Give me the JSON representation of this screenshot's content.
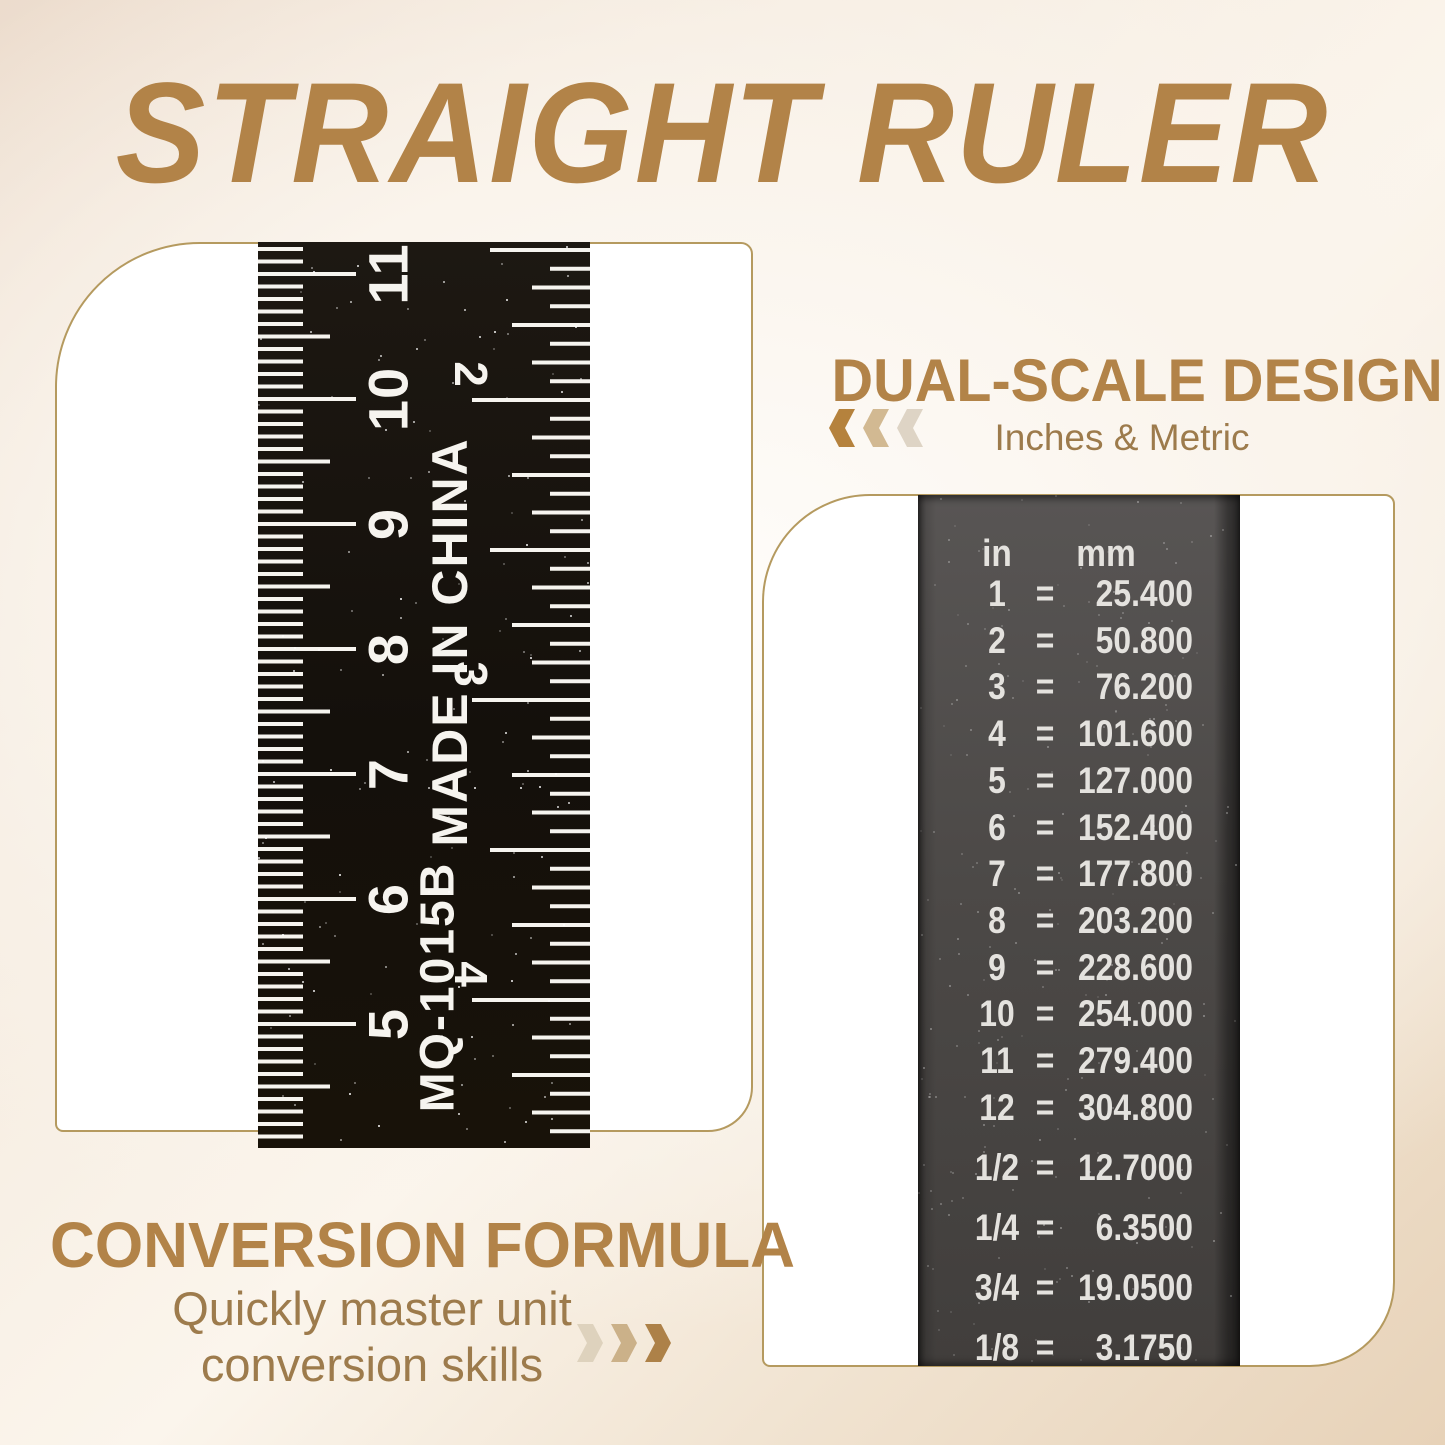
{
  "title": "STRAIGHT RULER",
  "sections": {
    "dual_scale": {
      "heading": "DUAL-SCALE DESIGN",
      "subtitle": "Inches & Metric",
      "chevron_icon": "triple-chevron-left"
    },
    "conversion_formula": {
      "heading": "CONVERSION FORMULA",
      "subtitle_line1": "Quickly master unit",
      "subtitle_line2": "conversion skills",
      "chevron_icon": "triple-chevron-right"
    }
  },
  "ruler_photo": {
    "model_number": "MQ-1015B",
    "origin_text": "MADE IN CHINA",
    "cm_scale_numbers": [
      "11",
      "10",
      "9",
      "8",
      "7",
      "6",
      "5"
    ],
    "inch_scale_numbers": [
      "2",
      "3",
      "4"
    ]
  },
  "conversion_table": {
    "headers": {
      "inches": "in",
      "millimeters": "mm"
    },
    "equals_sign": "=",
    "integer_rows": [
      {
        "in": "1",
        "mm": "25.400"
      },
      {
        "in": "2",
        "mm": "50.800"
      },
      {
        "in": "3",
        "mm": "76.200"
      },
      {
        "in": "4",
        "mm": "101.600"
      },
      {
        "in": "5",
        "mm": "127.000"
      },
      {
        "in": "6",
        "mm": "152.400"
      },
      {
        "in": "7",
        "mm": "177.800"
      },
      {
        "in": "8",
        "mm": "203.200"
      },
      {
        "in": "9",
        "mm": "228.600"
      },
      {
        "in": "10",
        "mm": "254.000"
      },
      {
        "in": "11",
        "mm": "279.400"
      },
      {
        "in": "12",
        "mm": "304.800"
      }
    ],
    "fraction_rows": [
      {
        "in": "1/2",
        "mm": "12.7000"
      },
      {
        "in": "1/4",
        "mm": "6.3500"
      },
      {
        "in": "3/4",
        "mm": "19.0500"
      },
      {
        "in": "1/8",
        "mm": "3.1750"
      }
    ]
  },
  "colors": {
    "accent_gold": "#b28348",
    "text_brown": "#9d7b4c",
    "card_border": "#b59a5f",
    "ruler_black": "#15100b",
    "strip_gray": "#4c4947",
    "mark_white": "#f6f4ef",
    "table_text": "#e4e2de",
    "chevron_dark_left": "#b5823d",
    "chevron_mid_left": "#d2b992",
    "chevron_light_left": "#ded4c5",
    "chevron_light_right": "#ded2bd",
    "chevron_mid_right": "#cbb189",
    "chevron_dark_right": "#ad8148"
  }
}
